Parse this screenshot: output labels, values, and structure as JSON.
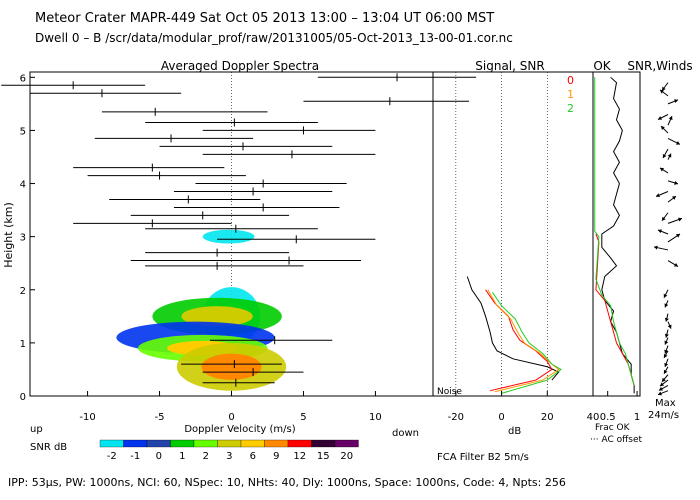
{
  "header": {
    "line1": "Meteor Crater   MAPR-449   Sat Oct 05 2013 13:00 – 13:04 UT 06:00 MST",
    "line2": "Dwell   0 –  B    /scr/data/modular_prof/raw/20131005/05-Oct-2013_13-00-01.cor.nc"
  },
  "footer": "IPP: 53μs,  PW: 1000ns,  NCI: 60,  NSpec: 10, NHts: 40,  Dly: 1000ns,  Space: 1000ns,  Code: 4,  Npts: 256",
  "panels": {
    "spectra_title": "Averaged Doppler Spectra",
    "snr_title": "Signal, SNR",
    "ok_title": "OK",
    "winds_title": "SNR,Winds",
    "up_label": "up",
    "down_label": "down",
    "snr_db_label": "SNR dB",
    "db_label": "dB",
    "noise_label": "Noise",
    "fca_label": "FCA Filter B2   5m/s",
    "frac_ok_label": "Frac OK",
    "ac_offset_label": "··· AC offset",
    "max_label": "Max",
    "max_speed_label": "24m/s",
    "ok_codes": [
      "0",
      "1",
      "2"
    ],
    "ok_code_colors": [
      "#ff0000",
      "#ff9900",
      "#22cc22"
    ]
  },
  "colorbar": {
    "labels": [
      "-2",
      "-1",
      "0",
      "1",
      "2",
      "3",
      "6",
      "9",
      "12",
      "15",
      "20"
    ],
    "colors": [
      "#00e5ee",
      "#0033ee",
      "#2244aa",
      "#00cc00",
      "#66ff00",
      "#cccc00",
      "#ffcc00",
      "#ff8800",
      "#ff0000",
      "#330033",
      "#660066"
    ]
  },
  "chart_data": [
    {
      "type": "heatmap",
      "title": "Averaged Doppler Spectra",
      "xlabel": "Doppler Velocity (m/s)",
      "ylabel": "Height (km)",
      "xlim": [
        -14,
        14
      ],
      "ylim": [
        0,
        6.1
      ],
      "xticks": [
        -10,
        -5,
        0,
        5,
        10
      ],
      "yticks": [
        0,
        1,
        2,
        3,
        4,
        5,
        6
      ],
      "velocity_markers": [
        {
          "h": 6.0,
          "v": 11.5,
          "lo": 6,
          "hi": 17
        },
        {
          "h": 5.85,
          "v": -11,
          "lo": -16,
          "hi": -6
        },
        {
          "h": 5.7,
          "v": -9,
          "lo": -14,
          "hi": -3.5
        },
        {
          "h": 5.55,
          "v": 11,
          "lo": 5,
          "hi": 16.5
        },
        {
          "h": 5.35,
          "v": -5.3,
          "lo": -9,
          "hi": 2.5
        },
        {
          "h": 5.15,
          "v": 0.2,
          "lo": -6,
          "hi": 6
        },
        {
          "h": 5.0,
          "v": 5,
          "lo": -2,
          "hi": 10
        },
        {
          "h": 4.85,
          "v": -4.2,
          "lo": -9.5,
          "hi": 1.5
        },
        {
          "h": 4.7,
          "v": 0.8,
          "lo": -5,
          "hi": 7
        },
        {
          "h": 4.55,
          "v": 4.2,
          "lo": -2,
          "hi": 10
        },
        {
          "h": 4.3,
          "v": -5.5,
          "lo": -11,
          "hi": -0.5
        },
        {
          "h": 4.15,
          "v": -5,
          "lo": -10,
          "hi": 1
        },
        {
          "h": 4.0,
          "v": 2.2,
          "lo": -2.5,
          "hi": 8
        },
        {
          "h": 3.85,
          "v": 1.5,
          "lo": -4,
          "hi": 7
        },
        {
          "h": 3.7,
          "v": -3,
          "lo": -8.5,
          "hi": 2
        },
        {
          "h": 3.55,
          "v": 2.2,
          "lo": -4,
          "hi": 7.5
        },
        {
          "h": 3.4,
          "v": -2,
          "lo": -7,
          "hi": 4
        },
        {
          "h": 3.25,
          "v": -5.5,
          "lo": -11,
          "hi": 0
        },
        {
          "h": 3.15,
          "v": 0.3,
          "lo": -6,
          "hi": 6
        },
        {
          "h": 2.95,
          "v": 4.5,
          "lo": -1,
          "hi": 10
        },
        {
          "h": 2.7,
          "v": -1,
          "lo": -6,
          "hi": 4
        },
        {
          "h": 2.55,
          "v": 4,
          "lo": -7,
          "hi": 9
        },
        {
          "h": 2.45,
          "v": -1,
          "lo": -6,
          "hi": 5
        },
        {
          "h": 1.05,
          "v": 3,
          "lo": -1.5,
          "hi": 7
        },
        {
          "h": 0.6,
          "v": 0.2,
          "lo": -3.5,
          "hi": 3.5
        },
        {
          "h": 0.45,
          "v": 1.5,
          "lo": -2,
          "hi": 5
        },
        {
          "h": 0.25,
          "v": 0.3,
          "lo": -2,
          "hi": 3
        }
      ],
      "echo_blobs": [
        {
          "h": 3.0,
          "dh": 0.13,
          "v": -0.2,
          "dv": 1.8,
          "level": 0
        },
        {
          "h": 1.5,
          "dh": 0.55,
          "v": 0.0,
          "dv": 2.0,
          "level": 0
        },
        {
          "h": 1.5,
          "dh": 0.35,
          "v": -1.0,
          "dv": 4.5,
          "level": 3
        },
        {
          "h": 1.1,
          "dh": 0.3,
          "v": -2.5,
          "dv": 5.5,
          "level": 1
        },
        {
          "h": 0.9,
          "dh": 0.25,
          "v": -2.0,
          "dv": 4.5,
          "level": 4
        },
        {
          "h": 0.55,
          "dh": 0.45,
          "v": 0.0,
          "dv": 3.8,
          "level": 5
        }
      ]
    },
    {
      "type": "line",
      "title": "Signal, SNR",
      "xlabel": "dB",
      "xlim": [
        -30,
        40
      ],
      "ylim": [
        0,
        6.1
      ],
      "xticks": [
        -20,
        0,
        20,
        40
      ],
      "series": [
        {
          "color": "#000000",
          "points": [
            [
              -15,
              2.25
            ],
            [
              -13,
              2.0
            ],
            [
              -9,
              1.75
            ],
            [
              -7,
              1.5
            ],
            [
              -5,
              1.2
            ],
            [
              -4,
              1.0
            ],
            [
              -2,
              0.85
            ],
            [
              5,
              0.7
            ],
            [
              20,
              0.55
            ],
            [
              25,
              0.45
            ],
            [
              22,
              0.3
            ]
          ]
        },
        {
          "color": "#ff0000",
          "points": [
            [
              -7,
              2.0
            ],
            [
              -3,
              1.75
            ],
            [
              3,
              1.5
            ],
            [
              5,
              1.25
            ],
            [
              8,
              1.05
            ],
            [
              15,
              0.85
            ],
            [
              20,
              0.65
            ],
            [
              22,
              0.5
            ],
            [
              15,
              0.3
            ],
            [
              -5,
              0.1
            ]
          ]
        },
        {
          "color": "#ff9900",
          "points": [
            [
              -6,
              2.0
            ],
            [
              -2,
              1.7
            ],
            [
              4,
              1.45
            ],
            [
              7,
              1.2
            ],
            [
              10,
              1.0
            ],
            [
              17,
              0.8
            ],
            [
              22,
              0.6
            ],
            [
              25,
              0.5
            ],
            [
              18,
              0.3
            ],
            [
              -3,
              0.08
            ]
          ]
        },
        {
          "color": "#22cc22",
          "points": [
            [
              -4,
              1.95
            ],
            [
              0,
              1.7
            ],
            [
              6,
              1.45
            ],
            [
              9,
              1.2
            ],
            [
              12,
              1.0
            ],
            [
              18,
              0.8
            ],
            [
              22,
              0.6
            ],
            [
              26,
              0.5
            ],
            [
              20,
              0.3
            ],
            [
              0,
              0.05
            ]
          ]
        }
      ]
    },
    {
      "type": "line",
      "title": "OK SNR, Winds",
      "xlabel": "Frac OK",
      "xlim": [
        0.25,
        1.05
      ],
      "xticks": [
        0.5,
        1
      ],
      "ylim": [
        0,
        6.1
      ],
      "series": [
        {
          "color": "#000000",
          "points": [
            [
              0.55,
              6.0
            ],
            [
              0.65,
              5.9
            ],
            [
              0.6,
              5.6
            ],
            [
              0.7,
              5.4
            ],
            [
              0.65,
              5.2
            ],
            [
              0.75,
              5.0
            ],
            [
              0.7,
              4.8
            ],
            [
              0.6,
              4.6
            ],
            [
              0.7,
              4.4
            ],
            [
              0.6,
              4.2
            ],
            [
              0.7,
              4.0
            ],
            [
              0.65,
              3.8
            ],
            [
              0.6,
              3.6
            ],
            [
              0.7,
              3.4
            ],
            [
              0.6,
              3.2
            ],
            [
              0.4,
              3.05
            ],
            [
              0.4,
              2.8
            ],
            [
              0.55,
              2.6
            ],
            [
              0.65,
              2.45
            ],
            [
              0.45,
              2.25
            ],
            [
              0.4,
              2.0
            ],
            [
              0.45,
              1.8
            ],
            [
              0.6,
              1.6
            ],
            [
              0.55,
              1.4
            ],
            [
              0.65,
              1.2
            ],
            [
              0.7,
              1.0
            ],
            [
              0.75,
              0.8
            ],
            [
              0.9,
              0.6
            ],
            [
              0.9,
              0.4
            ],
            [
              0.95,
              0.2
            ],
            [
              0.95,
              0.05
            ]
          ]
        },
        {
          "color": "#ff0000",
          "points": [
            [
              0.3,
              3.05
            ],
            [
              0.35,
              2.9
            ],
            [
              0.3,
              2.0
            ],
            [
              0.45,
              1.8
            ],
            [
              0.5,
              1.6
            ],
            [
              0.55,
              1.4
            ],
            [
              0.6,
              1.2
            ],
            [
              0.65,
              1.0
            ],
            [
              0.75,
              0.8
            ],
            [
              0.85,
              0.6
            ],
            [
              0.9,
              0.4
            ],
            [
              0.95,
              0.2
            ]
          ]
        },
        {
          "color": "#22cc22",
          "points": [
            [
              0.28,
              6.0
            ],
            [
              0.28,
              3.1
            ],
            [
              0.35,
              3.0
            ],
            [
              0.3,
              2.2
            ],
            [
              0.4,
              1.9
            ],
            [
              0.55,
              1.7
            ],
            [
              0.6,
              1.4
            ],
            [
              0.65,
              1.2
            ],
            [
              0.7,
              1.0
            ],
            [
              0.8,
              0.8
            ],
            [
              0.85,
              0.6
            ],
            [
              0.9,
              0.4
            ],
            [
              0.95,
              0.2
            ]
          ]
        }
      ],
      "wind_vectors": [
        {
          "h": 5.9,
          "dx": -6,
          "dy": 8
        },
        {
          "h": 5.65,
          "dx": -8,
          "dy": -6
        },
        {
          "h": 5.5,
          "dx": 10,
          "dy": -4
        },
        {
          "h": 5.3,
          "dx": -10,
          "dy": 5
        },
        {
          "h": 5.1,
          "dx": 4,
          "dy": -9
        },
        {
          "h": 4.95,
          "dx": -7,
          "dy": -7
        },
        {
          "h": 4.85,
          "dx": 12,
          "dy": 6
        },
        {
          "h": 4.65,
          "dx": -5,
          "dy": 9
        },
        {
          "h": 4.45,
          "dx": 3,
          "dy": -6
        },
        {
          "h": 4.2,
          "dx": -8,
          "dy": -5
        },
        {
          "h": 4.05,
          "dx": 10,
          "dy": 3
        },
        {
          "h": 3.85,
          "dx": -12,
          "dy": 5
        },
        {
          "h": 3.65,
          "dx": 8,
          "dy": -6
        },
        {
          "h": 3.45,
          "dx": -6,
          "dy": 8
        },
        {
          "h": 3.25,
          "dx": 14,
          "dy": -5
        },
        {
          "h": 3.05,
          "dx": -10,
          "dy": -4
        },
        {
          "h": 2.9,
          "dx": 12,
          "dy": -8
        },
        {
          "h": 2.75,
          "dx": -14,
          "dy": -3
        },
        {
          "h": 2.55,
          "dx": 10,
          "dy": 6
        },
        {
          "h": 2.0,
          "dx": -4,
          "dy": 8
        },
        {
          "h": 1.8,
          "dx": -3,
          "dy": 7
        },
        {
          "h": 1.55,
          "dx": -2,
          "dy": 8
        },
        {
          "h": 1.4,
          "dx": 3,
          "dy": 7
        },
        {
          "h": 1.25,
          "dx": -2,
          "dy": 8
        },
        {
          "h": 1.1,
          "dx": -3,
          "dy": 7
        },
        {
          "h": 0.95,
          "dx": -3,
          "dy": 8
        },
        {
          "h": 0.85,
          "dx": -4,
          "dy": 7
        },
        {
          "h": 0.7,
          "dx": -3,
          "dy": 8
        },
        {
          "h": 0.55,
          "dx": -4,
          "dy": 7
        },
        {
          "h": 0.4,
          "dx": -6,
          "dy": 7
        },
        {
          "h": 0.3,
          "dx": -8,
          "dy": 6
        },
        {
          "h": 0.2,
          "dx": -9,
          "dy": 5
        },
        {
          "h": 0.1,
          "dx": -10,
          "dy": 4
        }
      ]
    }
  ]
}
